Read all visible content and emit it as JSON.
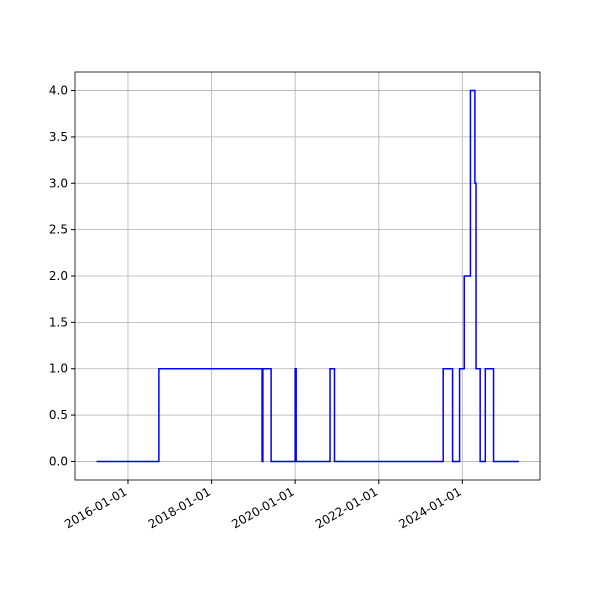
{
  "chart_data": {
    "type": "line",
    "step": "post",
    "x": [
      "2015-04-01",
      "2016-09-27",
      "2019-03-18",
      "2019-03-25",
      "2019-06-05",
      "2020-01-01",
      "2020-01-10",
      "2020-11-01",
      "2020-12-10",
      "2023-07-18",
      "2023-10-08",
      "2023-12-08",
      "2024-01-18",
      "2024-03-12",
      "2024-04-20",
      "2024-04-30",
      "2024-06-05",
      "2024-07-20",
      "2024-09-30",
      "2025-05-10"
    ],
    "series": [
      {
        "color": "#0000ff",
        "values": [
          0,
          1,
          0,
          1,
          0,
          1,
          0,
          1,
          0,
          1,
          0,
          1,
          2,
          4,
          3,
          1,
          0,
          1,
          0,
          0
        ]
      }
    ],
    "xlim": [
      "2014-09-25",
      "2025-11-10"
    ],
    "xticks": [
      "2016-01-01",
      "2018-01-01",
      "2020-01-01",
      "2022-01-01",
      "2024-01-01"
    ],
    "ylim": [
      -0.2,
      4.2
    ],
    "yticks": [
      {
        "value": 0,
        "label": "0.0"
      },
      0.5,
      {
        "value": 1,
        "label": "1.0"
      },
      1.5,
      {
        "value": 2,
        "label": "2.0"
      },
      2.5,
      {
        "value": 3,
        "label": "3.0"
      },
      3.5,
      {
        "value": 4,
        "label": "4.0"
      }
    ],
    "grid": true
  }
}
